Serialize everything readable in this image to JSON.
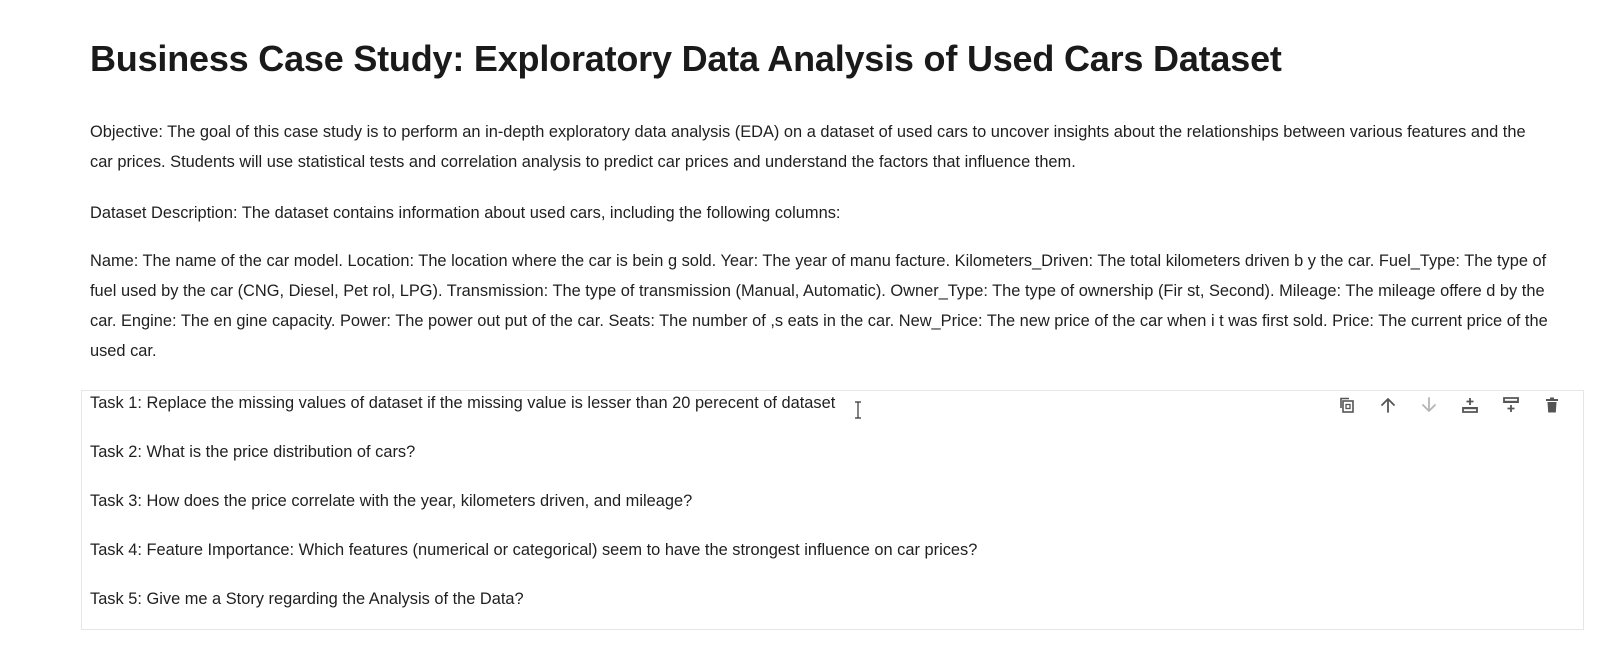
{
  "heading": {
    "title": "Business Case Study: Exploratory Data Analysis of Used Cars Dataset"
  },
  "paragraphs": {
    "objective": "Objective: The goal of this case study is to perform an in-depth exploratory data analysis (EDA) on a dataset of used cars to uncover insights about the relationships between various features and the car prices. Students will use statistical tests and correlation analysis to predict car prices and understand the factors that influence them.",
    "dataset_description": "Dataset Description: The dataset contains information about used cars, including the following columns:",
    "columns": "Name: The name of the car model. Location: The location where the car is bein g sold. Year: The year of manu facture. Kilometers_Driven: The total kilometers driven b y the car. Fuel_Type: The type of fuel used by the car (CNG, Diesel, Pet rol, LPG). Transmission: The type of transmission (Manual, Automatic). Owner_Type: The type of ownership (Fir st, Second). Mileage: The mileage offere d by the car. Engine: The en gine capacity. Power: The power out put of the car. Seats: The number of ,s eats in the car. New_Price: The new price of the car when i t was first sold. Price: The current price of the used car."
  },
  "cell": {
    "tasks": [
      "Task 1: Replace the missing values of dataset if the missing value is lesser than 20 perecent of dataset",
      "Task 2: What is the price distribution of cars?",
      "Task 3: How does the price correlate with the year, kilometers driven, and mileage?",
      "Task 4: Feature Importance: Which features (numerical or categorical) seem to have the strongest influence on car prices?",
      "Task 5: Give me a Story regarding the Analysis of the Data?"
    ],
    "toolbar_icons": [
      "duplicate-icon",
      "arrow-up-icon",
      "arrow-down-icon",
      "insert-above-icon",
      "insert-below-icon",
      "trash-icon"
    ]
  },
  "colors": {
    "text": "#1f1f1f",
    "title": "#1a1a1a",
    "cell_border": "#e6e6e6",
    "icon": "#555555",
    "icon_disabled": "#b5b5b5"
  }
}
